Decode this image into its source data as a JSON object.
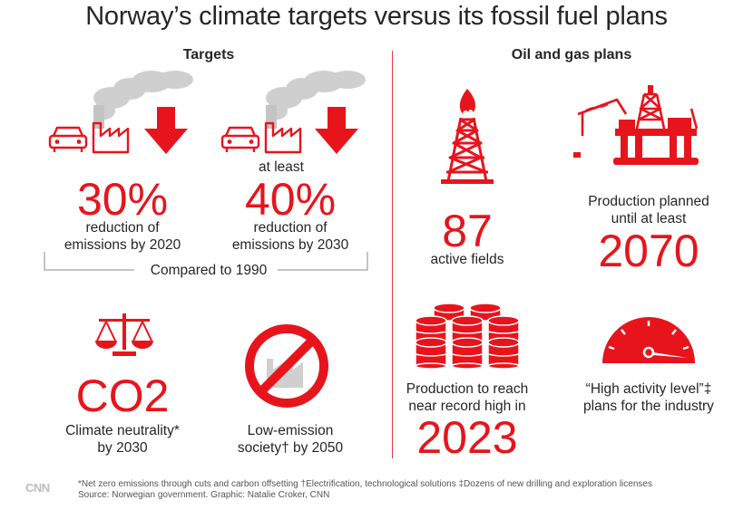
{
  "title": "Norway’s climate targets versus its fossil fuel plans",
  "colors": {
    "accent": "#e8141c",
    "smoke": "#cfcfcf",
    "text": "#262626"
  },
  "targets": {
    "heading": "Targets",
    "t2020": {
      "value": "30%",
      "label_line1": "reduction of",
      "label_line2": "emissions by 2020"
    },
    "t2030": {
      "prefix": "at least",
      "value": "40%",
      "label_line1": "reduction of",
      "label_line2": "emissions by 2030"
    },
    "baseline": "Compared to 1990",
    "neutrality": {
      "value": "CO2",
      "label_line1": "Climate neutrality*",
      "label_line2": "by 2030"
    },
    "low_emission": {
      "label_line1": "Low-emission",
      "label_line2": "society† by 2050"
    }
  },
  "plans": {
    "heading": "Oil and gas plans",
    "fields": {
      "value": "87",
      "label": "active fields"
    },
    "production_until": {
      "label_line1": "Production planned",
      "label_line2": "until at least",
      "value": "2070"
    },
    "record": {
      "label_line1": "Production to reach",
      "label_line2": "near record high in",
      "value": "2023"
    },
    "activity": {
      "label_line1": "“High activity level”‡",
      "label_line2": "plans for the industry"
    }
  },
  "footer": {
    "logo": "CNN",
    "note": "*Net zero emissions through cuts and carbon offsetting †Electrification, technological solutions ‡Dozens of new drilling and exploration licenses",
    "source": "Source: Norwegian government. Graphic: Natalie Croker, CNN"
  },
  "icons": [
    "car-icon",
    "factory-icon",
    "down-arrow-icon",
    "scales-icon",
    "no-factory-icon",
    "oil-derrick-icon",
    "offshore-rig-icon",
    "barrels-icon",
    "gauge-icon"
  ]
}
